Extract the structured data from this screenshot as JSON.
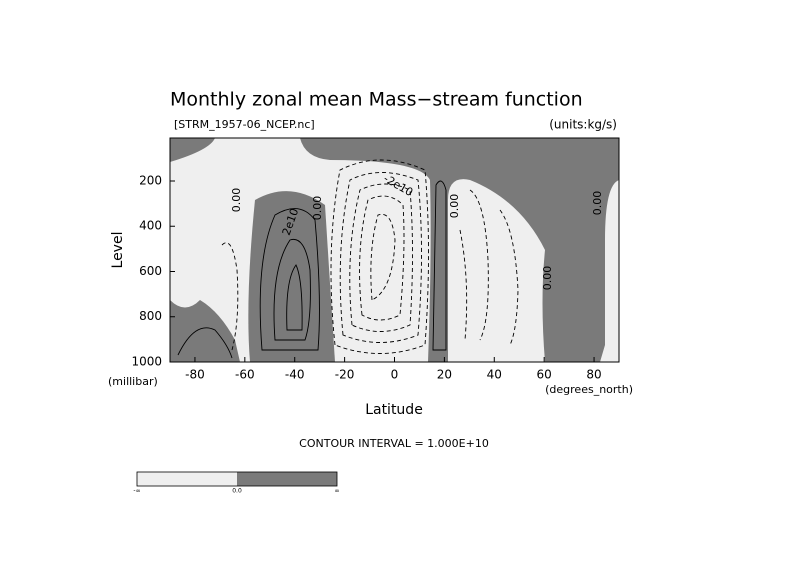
{
  "chart_data": {
    "type": "contour",
    "title": "Monthly zonal mean Mass−stream function",
    "subtitle_left": "[STRM_1957-06_NCEP.nc]",
    "subtitle_right": "(units:kg/s)",
    "x_label": "Latitude",
    "x_units": "(degrees_north)",
    "y_label": "Level",
    "y_units": "(millibar)",
    "xlim": [
      -90,
      90
    ],
    "xticks": [
      -80,
      -60,
      -40,
      -20,
      0,
      20,
      40,
      60,
      80
    ],
    "ylim": [
      1000,
      10
    ],
    "yticks": [
      200,
      400,
      600,
      800,
      1000
    ],
    "contour_labels": [
      "0.00",
      "0.00",
      "0.00",
      "0.00",
      "0.00",
      "2e10",
      "-2e10"
    ],
    "contour_interval": "CONTOUR INTERVAL = 1.000E+10",
    "colors": {
      "negative": "#efefef",
      "positive": "#7a7a7a"
    },
    "colorbar_labels": [
      "-∞",
      "0.0",
      "∞"
    ]
  }
}
